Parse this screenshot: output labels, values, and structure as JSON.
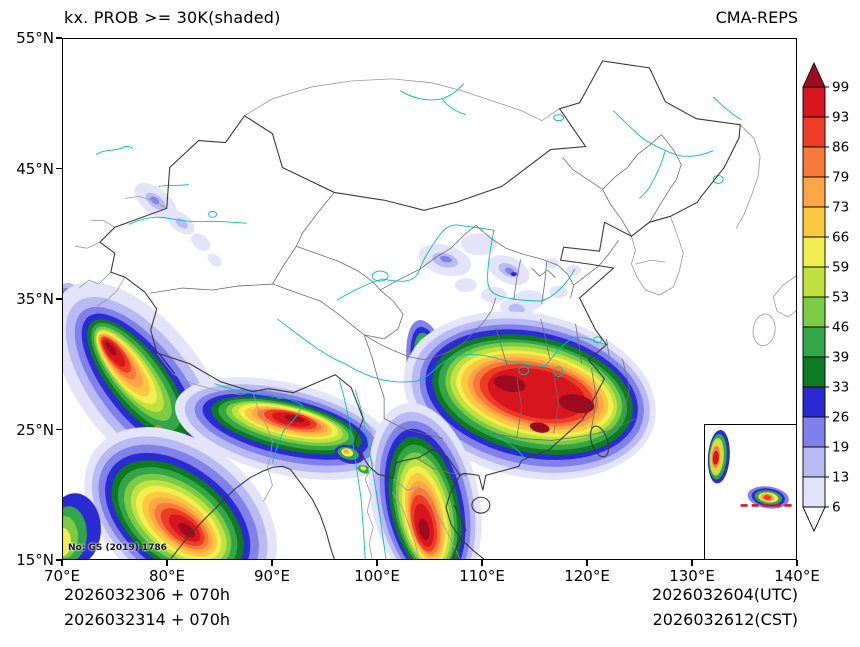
{
  "title": {
    "left": "kx. PROB >= 30K(shaded)",
    "right": "CMA-REPS"
  },
  "axis": {
    "x_ticks": [
      "70°E",
      "80°E",
      "90°E",
      "100°E",
      "110°E",
      "120°E",
      "130°E",
      "140°E"
    ],
    "y_ticks": [
      "55°N",
      "45°N",
      "35°N",
      "25°N",
      "15°N"
    ]
  },
  "colorbar": {
    "labels_top_to_bottom": [
      "99",
      "93",
      "86",
      "79",
      "73",
      "66",
      "59",
      "53",
      "46",
      "39",
      "33",
      "26",
      "19",
      "13",
      "6"
    ],
    "colors_top_to_bottom": [
      "#9e0b20",
      "#d8161f",
      "#ee3d24",
      "#f9793a",
      "#fca648",
      "#fbc93d",
      "#f2ee52",
      "#bfe23f",
      "#7ccb44",
      "#33a647",
      "#0e7a22",
      "#2b2bd4",
      "#8181ec",
      "#b9b9f3",
      "#e3e3fa",
      "#ffffff"
    ]
  },
  "footer": {
    "init_utc": "2026032306 + 070h",
    "init_cst": "2026032314 + 070h",
    "valid_utc": "2026032604(UTC)",
    "valid_cst": "2026032612(CST)"
  },
  "watermark": "No: GS (2019) 1786",
  "map": {
    "line_colors": {
      "national_border": "#3a3a3a",
      "province_border": "#6e6e6e",
      "foreign_border": "#9a9a9a",
      "river": "#00bfbf"
    }
  }
}
